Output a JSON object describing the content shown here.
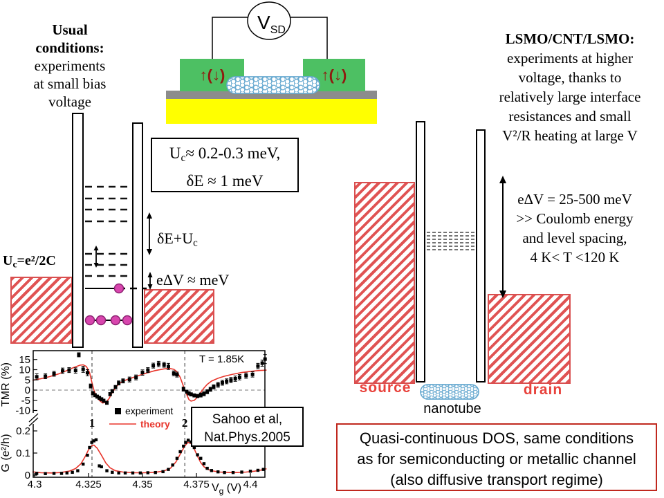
{
  "top_left": {
    "l1": "Usual",
    "l2": "conditions:",
    "l3": "experiments",
    "l4": "at small bias",
    "l5": "voltage"
  },
  "device": {
    "vsd_main": "V",
    "vsd_sub": "SD",
    "spin": "↑(↓)"
  },
  "top_right": {
    "title": "LSMO/CNT/LSMO:",
    "l1": "experiments at higher",
    "l2": "voltage, thanks to",
    "l3": "relatively large interface",
    "l4": "resistances and small",
    "l5": "V²/R heating at large V"
  },
  "left_diagram": {
    "uc_pre": "U",
    "uc_sub": "c",
    "uc_post": "=e²/2C",
    "box_pre": "U",
    "box_sub": "c",
    "box_post": "≈ 0.2-0.3 meV,",
    "box_l2": "δE ≈ 1 meV",
    "deuc_pre": "δE+U",
    "deuc_sub": "c",
    "edv": "eΔV ≈ meV"
  },
  "right_diagram": {
    "l1": "eΔV = 25-500 meV",
    "l2": ">> Coulomb energy",
    "l3": "and level spacing,",
    "l4": "4 K< T <120 K",
    "source": "source",
    "drain": "drain",
    "nanotube": "nanotube"
  },
  "citation": {
    "l1": "Sahoo et al,",
    "l2": "Nat.Phys.2005"
  },
  "dos_box": {
    "l1": "Quasi-continuous DOS, same conditions",
    "l2": "as for semiconducting or metallic channel",
    "l3": "(also diffusive transport regime)"
  },
  "colors": {
    "electrode_green": "#4dc063",
    "substrate_yellow": "#ffff00",
    "oxide_gray": "#8c8c8c",
    "hatch_red": "#e05353",
    "label_red": "#e8423c",
    "theory_red": "#e8352b",
    "electron_magenta": "#d846ae",
    "nanotube_blue": "#67a9d0",
    "dos_border_red": "#c0281e",
    "spin_maroon": "#8f1a10"
  },
  "chart_data": {
    "type": "line",
    "title": "",
    "temperature_label": "T = 1.85K",
    "xlabel": {
      "pre": "V",
      "sub": "g",
      "post": " (V)"
    },
    "x_ticks": [
      4.3,
      4.325,
      4.35,
      4.375,
      4.4
    ],
    "x_range": [
      4.2995,
      4.407
    ],
    "panels": [
      {
        "name": "TMR",
        "ylabel": "TMR (%)",
        "y_ticks": [
          15,
          10,
          5,
          0,
          -5,
          -10
        ],
        "y_range": [
          -13,
          19
        ]
      },
      {
        "name": "G",
        "ylabel": "G (e²/h)",
        "y_ticks": [
          0.2,
          0.1,
          0
        ],
        "y_range": [
          0,
          0.22
        ]
      }
    ],
    "legend": [
      {
        "label": "experiment",
        "marker": "square",
        "color": "#000000"
      },
      {
        "label": "theory",
        "marker": "line",
        "color": "#e8352b"
      }
    ],
    "region_labels": [
      {
        "text": "1",
        "x": 4.3266
      },
      {
        "text": "2",
        "x": 4.3696
      }
    ],
    "dashed_vlines": [
      4.3266,
      4.3696
    ],
    "dashed_hline_tmr": 0,
    "series": {
      "tmr_experiment": [
        [
          4.301,
          6.5,
          1.5
        ],
        [
          4.305,
          6.8,
          1.2
        ],
        [
          4.309,
          8.0,
          1.2
        ],
        [
          4.313,
          9.5,
          1.3
        ],
        [
          4.316,
          9.8,
          1.2
        ],
        [
          4.319,
          9.6,
          1.3
        ],
        [
          4.3205,
          17.3,
          1.0
        ],
        [
          4.3225,
          10.2,
          1.5
        ],
        [
          4.3245,
          8.5,
          1.5
        ],
        [
          4.326,
          2.0,
          1.0
        ],
        [
          4.327,
          -1.5,
          0.8
        ],
        [
          4.328,
          -2.5,
          0.8
        ],
        [
          4.329,
          -3.2,
          0.8
        ],
        [
          4.33,
          -3.8,
          0.8
        ],
        [
          4.331,
          -4.5,
          0.8
        ],
        [
          4.332,
          -5.2,
          0.8
        ],
        [
          4.3335,
          -6.2,
          0.8
        ],
        [
          4.335,
          -2.0,
          0.8
        ],
        [
          4.336,
          -0.5,
          0.8
        ],
        [
          4.3375,
          1.5,
          0.8
        ],
        [
          4.339,
          3.5,
          1.0
        ],
        [
          4.341,
          4.5,
          1.0
        ],
        [
          4.344,
          5.2,
          1.2
        ],
        [
          4.347,
          6.2,
          1.2
        ],
        [
          4.35,
          8.6,
          1.3
        ],
        [
          4.3525,
          9.8,
          1.2
        ],
        [
          4.355,
          12.0,
          1.2
        ],
        [
          4.3575,
          12.8,
          1.3
        ],
        [
          4.36,
          12.4,
          1.2
        ],
        [
          4.362,
          11.6,
          1.5
        ],
        [
          4.3645,
          8.2,
          1.2
        ],
        [
          4.366,
          7.6,
          1.2
        ],
        [
          4.369,
          0.5,
          1.0
        ],
        [
          4.3705,
          -0.8,
          0.8
        ],
        [
          4.3715,
          -1.6,
          0.8
        ],
        [
          4.3725,
          -2.1,
          0.8
        ],
        [
          4.374,
          -2.6,
          0.8
        ],
        [
          4.3755,
          -2.9,
          0.8
        ],
        [
          4.377,
          -2.4,
          1.0
        ],
        [
          4.3785,
          -1.8,
          1.0
        ],
        [
          4.38,
          -0.8,
          1.0
        ],
        [
          4.3815,
          0.4,
          1.0
        ],
        [
          4.383,
          1.6,
          1.0
        ],
        [
          4.385,
          2.6,
          1.2
        ],
        [
          4.387,
          3.6,
          1.2
        ],
        [
          4.389,
          4.3,
          1.2
        ],
        [
          4.391,
          4.9,
          1.3
        ],
        [
          4.393,
          5.6,
          1.3
        ],
        [
          4.395,
          6.3,
          1.3
        ],
        [
          4.398,
          7.1,
          1.3
        ],
        [
          4.401,
          7.7,
          1.3
        ],
        [
          4.4035,
          11.8,
          1.3
        ],
        [
          4.4055,
          13.2,
          1.5
        ],
        [
          4.4068,
          15.2,
          2.2
        ]
      ],
      "tmr_theory": [
        [
          4.299,
          4.8
        ],
        [
          4.303,
          5.6
        ],
        [
          4.307,
          6.6
        ],
        [
          4.311,
          7.9
        ],
        [
          4.315,
          9.6
        ],
        [
          4.318,
          11.0
        ],
        [
          4.321,
          12.2
        ],
        [
          4.3225,
          12.4
        ],
        [
          4.324,
          11.6
        ],
        [
          4.3255,
          8.5
        ],
        [
          4.3265,
          4.0
        ],
        [
          4.3275,
          0.0
        ],
        [
          4.3285,
          -2.8
        ],
        [
          4.33,
          -5.0
        ],
        [
          4.3315,
          -6.3
        ],
        [
          4.333,
          -6.0
        ],
        [
          4.3345,
          -4.2
        ],
        [
          4.336,
          -1.2
        ],
        [
          4.3375,
          1.2
        ],
        [
          4.339,
          3.0
        ],
        [
          4.341,
          4.4
        ],
        [
          4.344,
          5.6
        ],
        [
          4.348,
          7.0
        ],
        [
          4.352,
          8.4
        ],
        [
          4.356,
          9.6
        ],
        [
          4.36,
          10.4
        ],
        [
          4.3625,
          10.6
        ],
        [
          4.3645,
          10.2
        ],
        [
          4.366,
          9.0
        ],
        [
          4.3675,
          6.2
        ],
        [
          4.369,
          1.8
        ],
        [
          4.3705,
          -2.2
        ],
        [
          4.3715,
          -4.6
        ],
        [
          4.3725,
          -5.4
        ],
        [
          4.374,
          -5.0
        ],
        [
          4.3755,
          -3.4
        ],
        [
          4.377,
          -1.2
        ],
        [
          4.3785,
          1.0
        ],
        [
          4.38,
          2.8
        ],
        [
          4.382,
          4.4
        ],
        [
          4.385,
          5.8
        ],
        [
          4.388,
          6.8
        ],
        [
          4.392,
          7.8
        ],
        [
          4.396,
          8.6
        ],
        [
          4.4,
          9.2
        ],
        [
          4.404,
          9.6
        ],
        [
          4.4075,
          9.8
        ]
      ],
      "g_experiment": [
        [
          4.301,
          0.008
        ],
        [
          4.305,
          0.007
        ],
        [
          4.309,
          0.008
        ],
        [
          4.3125,
          0.008
        ],
        [
          4.315,
          0.01
        ],
        [
          4.3175,
          0.013
        ],
        [
          4.32,
          0.02
        ],
        [
          4.3225,
          0.05
        ],
        [
          4.3245,
          0.09
        ],
        [
          4.3255,
          0.125
        ],
        [
          4.3265,
          0.148
        ],
        [
          4.3275,
          0.155
        ],
        [
          4.3285,
          0.16
        ],
        [
          4.33,
          0.042
        ],
        [
          4.331,
          0.038
        ],
        [
          4.3335,
          0.02
        ],
        [
          4.336,
          0.013
        ],
        [
          4.339,
          0.01
        ],
        [
          4.342,
          0.01
        ],
        [
          4.3455,
          0.01
        ],
        [
          4.349,
          0.01
        ],
        [
          4.3525,
          0.011
        ],
        [
          4.356,
          0.012
        ],
        [
          4.3595,
          0.016
        ],
        [
          4.362,
          0.026
        ],
        [
          4.364,
          0.046
        ],
        [
          4.366,
          0.076
        ],
        [
          4.3675,
          0.106
        ],
        [
          4.369,
          0.131
        ],
        [
          4.37,
          0.148
        ],
        [
          4.3712,
          0.158
        ],
        [
          4.3725,
          0.15
        ],
        [
          4.374,
          0.125
        ],
        [
          4.3755,
          0.092
        ],
        [
          4.377,
          0.076
        ],
        [
          4.3785,
          0.052
        ],
        [
          4.38,
          0.031
        ],
        [
          4.382,
          0.021
        ],
        [
          4.385,
          0.015
        ],
        [
          4.388,
          0.012
        ],
        [
          4.392,
          0.012
        ],
        [
          4.396,
          0.014
        ],
        [
          4.4,
          0.018
        ],
        [
          4.4035,
          0.022
        ],
        [
          4.406,
          0.026
        ]
      ],
      "g_theory": [
        [
          4.299,
          0.015
        ],
        [
          4.303,
          0.011
        ],
        [
          4.308,
          0.01
        ],
        [
          4.312,
          0.012
        ],
        [
          4.316,
          0.018
        ],
        [
          4.319,
          0.03
        ],
        [
          4.3215,
          0.052
        ],
        [
          4.3235,
          0.085
        ],
        [
          4.325,
          0.115
        ],
        [
          4.3265,
          0.133
        ],
        [
          4.3275,
          0.136
        ],
        [
          4.329,
          0.122
        ],
        [
          4.331,
          0.09
        ],
        [
          4.333,
          0.055
        ],
        [
          4.335,
          0.033
        ],
        [
          4.3375,
          0.02
        ],
        [
          4.341,
          0.014
        ],
        [
          4.346,
          0.011
        ],
        [
          4.351,
          0.011
        ],
        [
          4.356,
          0.013
        ],
        [
          4.36,
          0.019
        ],
        [
          4.363,
          0.032
        ],
        [
          4.3655,
          0.06
        ],
        [
          4.3675,
          0.095
        ],
        [
          4.3695,
          0.13
        ],
        [
          4.371,
          0.148
        ],
        [
          4.3725,
          0.143
        ],
        [
          4.374,
          0.118
        ],
        [
          4.3755,
          0.085
        ],
        [
          4.377,
          0.057
        ],
        [
          4.3785,
          0.038
        ],
        [
          4.38,
          0.027
        ],
        [
          4.3825,
          0.019
        ],
        [
          4.386,
          0.014
        ],
        [
          4.39,
          0.012
        ],
        [
          4.394,
          0.012
        ],
        [
          4.398,
          0.014
        ],
        [
          4.402,
          0.018
        ],
        [
          4.405,
          0.023
        ],
        [
          4.4075,
          0.029
        ]
      ]
    }
  }
}
